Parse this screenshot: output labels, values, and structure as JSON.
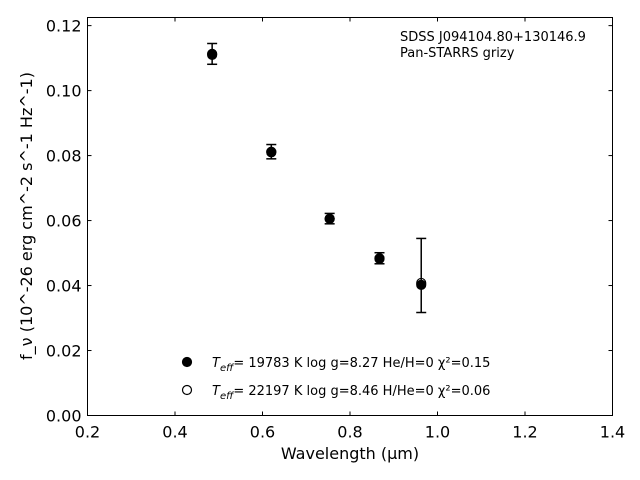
{
  "chart_data": {
    "type": "scatter",
    "xlabel": "Wavelength (μm)",
    "ylabel": "f_ν (10^-26 erg cm^-2 s^-1 Hz^-1)",
    "xlim": [
      0.2,
      1.4
    ],
    "ylim": [
      0.0,
      0.1225
    ],
    "xticks": [
      0.2,
      0.4,
      0.6,
      0.8,
      1.0,
      1.2,
      1.4
    ],
    "xtick_labels": [
      "0.2",
      "0.4",
      "0.6",
      "0.8",
      "1.0",
      "1.2",
      "1.4"
    ],
    "yticks": [
      0.0,
      0.02,
      0.04,
      0.06,
      0.08,
      0.1,
      0.12
    ],
    "ytick_labels": [
      "0.00",
      "0.02",
      "0.04",
      "0.06",
      "0.08",
      "0.10",
      "0.12"
    ],
    "grid": false,
    "annotations": [
      "SDSS J094104.80+130146.9",
      "Pan-STARRS grizy"
    ],
    "observed": {
      "x": [
        0.4849,
        0.6201,
        0.7535,
        0.8674,
        0.9628
      ],
      "y": [
        0.1113,
        0.0812,
        0.0606,
        0.0484,
        0.0431
      ],
      "yerr": [
        0.0032,
        0.0022,
        0.0016,
        0.0017,
        0.0114
      ]
    },
    "series": [
      {
        "marker": "filled",
        "label_prefix": "T",
        "label_sub": "eff",
        "label_rest": "= 19783 K  log g=8.27  He/H=0  χ²=0.15",
        "x": [
          0.4849,
          0.6201,
          0.7535,
          0.8674,
          0.9628
        ],
        "y": [
          0.1113,
          0.0812,
          0.0606,
          0.0484,
          0.0402
        ]
      },
      {
        "marker": "open",
        "label_prefix": "T",
        "label_sub": "eff",
        "label_rest": "= 22197 K  log g=8.46  H/He=0  χ²=0.06",
        "x": [
          0.4849,
          0.6201,
          0.7535,
          0.8674,
          0.9628
        ],
        "y": [
          0.111,
          0.081,
          0.0605,
          0.0482,
          0.0408
        ]
      }
    ]
  }
}
